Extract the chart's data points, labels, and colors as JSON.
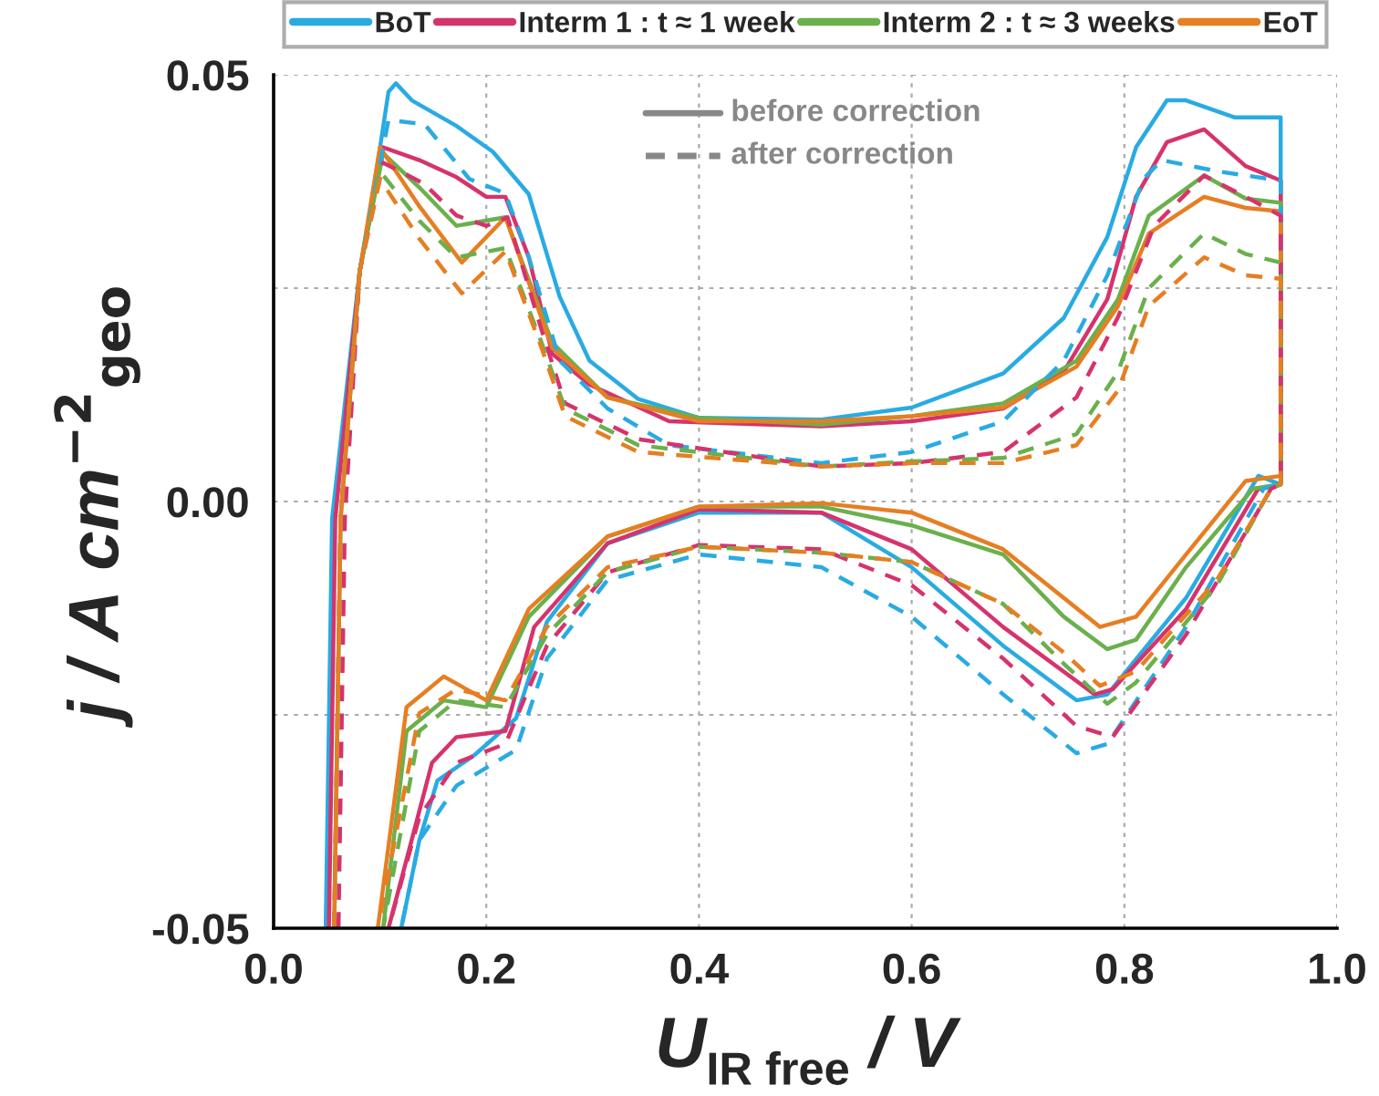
{
  "chart_data": {
    "type": "line",
    "xlabel": "U$_{IR free}$ / V",
    "ylabel": "j / A cm$^{−2}$$_{geo}$",
    "annotations": [
      "before correction",
      "after correction"
    ],
    "xlim": [
      0,
      1
    ],
    "ylim": [
      -0.05,
      0.05
    ],
    "xticks": [
      {
        "value": 0,
        "label": "0.0"
      },
      {
        "value": 0.2,
        "label": "0.2"
      },
      {
        "value": 0.4,
        "label": "0.4"
      },
      {
        "value": 0.6,
        "label": "0.6"
      },
      {
        "value": 0.8,
        "label": "0.8"
      },
      {
        "value": 1,
        "label": "1.0"
      }
    ],
    "yticks": [
      {
        "value": -0.05,
        "label": "-0.05"
      },
      {
        "value": -0.025,
        "label": null
      },
      {
        "value": 0,
        "label": "0.00"
      },
      {
        "value": 0.025,
        "label": null
      },
      {
        "value": 0.05,
        "label": "0.05"
      }
    ],
    "grid": true,
    "legend": "top",
    "series": [
      {
        "name": "BoT",
        "color": "#29abe2",
        "line_style": "solid",
        "x": [
          0.049,
          0.055,
          0.081,
          0.091,
          0.108,
          0.115,
          0.13,
          0.172,
          0.206,
          0.24,
          0.269,
          0.297,
          0.343,
          0.4,
          0.515,
          0.6,
          0.686,
          0.743,
          0.784,
          0.811,
          0.84,
          0.858,
          0.904,
          0.947,
          0.947,
          0.926,
          0.858,
          0.784,
          0.755,
          0.686,
          0.6,
          0.515,
          0.4,
          0.314,
          0.257,
          0.228,
          0.189,
          0.154,
          0.137,
          0.12
        ],
        "values": [
          -0.05,
          -0.002,
          0.027,
          0.034,
          0.048,
          0.049,
          0.047,
          0.044,
          0.041,
          0.036,
          0.024,
          0.0165,
          0.012,
          0.0098,
          0.0096,
          0.011,
          0.015,
          0.0215,
          0.031,
          0.0415,
          0.047,
          0.047,
          0.045,
          0.045,
          0.002,
          0.003,
          -0.0113,
          -0.0226,
          -0.0233,
          -0.0169,
          -0.0077,
          -0.0013,
          -0.0013,
          -0.0049,
          -0.0141,
          -0.0254,
          -0.0297,
          -0.0327,
          -0.0397,
          -0.05
        ]
      },
      {
        "name": "Interm 1 : t ≈ 1 week",
        "color": "#d6336c",
        "line_style": "solid",
        "x": [
          0.052,
          0.058,
          0.081,
          0.103,
          0.137,
          0.172,
          0.2,
          0.218,
          0.24,
          0.262,
          0.297,
          0.372,
          0.515,
          0.6,
          0.686,
          0.743,
          0.784,
          0.811,
          0.84,
          0.875,
          0.914,
          0.947,
          0.947,
          0.926,
          0.858,
          0.789,
          0.772,
          0.686,
          0.6,
          0.515,
          0.4,
          0.314,
          0.245,
          0.218,
          0.172,
          0.149,
          0.108
        ],
        "values": [
          -0.05,
          -0.002,
          0.027,
          0.0415,
          0.04,
          0.038,
          0.0357,
          0.0357,
          0.0286,
          0.0173,
          0.0137,
          0.0094,
          0.0088,
          0.0094,
          0.0109,
          0.0152,
          0.0237,
          0.0357,
          0.0421,
          0.0436,
          0.0393,
          0.0376,
          0.002,
          0.0015,
          -0.0126,
          -0.022,
          -0.0226,
          -0.0147,
          -0.0056,
          -0.0013,
          -0.0009,
          -0.0049,
          -0.0147,
          -0.0269,
          -0.0276,
          -0.0306,
          -0.05
        ]
      },
      {
        "name": "Interm 2 : t ≈ 3 weeks",
        "color": "#6ab04c",
        "line_style": "solid",
        "x": [
          0.057,
          0.063,
          0.081,
          0.103,
          0.137,
          0.172,
          0.218,
          0.262,
          0.314,
          0.4,
          0.515,
          0.6,
          0.686,
          0.755,
          0.794,
          0.823,
          0.875,
          0.914,
          0.947,
          0.947,
          0.921,
          0.858,
          0.811,
          0.784,
          0.743,
          0.686,
          0.6,
          0.515,
          0.4,
          0.314,
          0.24,
          0.2,
          0.16,
          0.125,
          0.103
        ],
        "values": [
          -0.05,
          -0.002,
          0.027,
          0.0408,
          0.0368,
          0.0323,
          0.0333,
          0.0186,
          0.0122,
          0.0098,
          0.009,
          0.01,
          0.0115,
          0.0165,
          0.0237,
          0.0335,
          0.0382,
          0.0355,
          0.035,
          0.002,
          0.0015,
          -0.0077,
          -0.0162,
          -0.0173,
          -0.0135,
          -0.0062,
          -0.0028,
          -0.0006,
          -0.0006,
          -0.0041,
          -0.0135,
          -0.0241,
          -0.0233,
          -0.0269,
          -0.05
        ]
      },
      {
        "name": "EoT",
        "color": "#e67e22",
        "line_style": "solid",
        "x": [
          0.057,
          0.063,
          0.081,
          0.1,
          0.137,
          0.177,
          0.218,
          0.262,
          0.314,
          0.4,
          0.515,
          0.6,
          0.686,
          0.755,
          0.794,
          0.823,
          0.875,
          0.914,
          0.947,
          0.947,
          0.914,
          0.858,
          0.811,
          0.777,
          0.743,
          0.686,
          0.6,
          0.515,
          0.4,
          0.314,
          0.24,
          0.2,
          0.16,
          0.125,
          0.098
        ],
        "values": [
          -0.05,
          -0.002,
          0.027,
          0.0415,
          0.0346,
          0.028,
          0.0333,
          0.018,
          0.0122,
          0.0094,
          0.0094,
          0.01,
          0.011,
          0.0158,
          0.0229,
          0.0314,
          0.0357,
          0.0344,
          0.034,
          0.003,
          0.0024,
          -0.0062,
          -0.0135,
          -0.0147,
          -0.0113,
          -0.0056,
          -0.0013,
          -0.0002,
          -0.0006,
          -0.0041,
          -0.0126,
          -0.0233,
          -0.0205,
          -0.0241,
          -0.05
        ]
      },
      {
        "color": "#29abe2",
        "line_style": "dashed",
        "x": [
          0.057,
          0.063,
          0.081,
          0.108,
          0.142,
          0.184,
          0.218,
          0.24,
          0.269,
          0.314,
          0.372,
          0.515,
          0.6,
          0.686,
          0.743,
          0.784,
          0.818,
          0.835,
          0.887,
          0.947,
          0.947,
          0.931,
          0.858,
          0.784,
          0.755,
          0.686,
          0.6,
          0.515,
          0.4,
          0.314,
          0.257,
          0.228,
          0.172,
          0.137,
          0.12
        ],
        "values": [
          -0.05,
          -0.002,
          0.027,
          0.0447,
          0.0442,
          0.0378,
          0.0361,
          0.0286,
          0.0165,
          0.0109,
          0.0066,
          0.0045,
          0.0058,
          0.0094,
          0.0165,
          0.0265,
          0.0378,
          0.04,
          0.0387,
          0.0376,
          0.002,
          0.0015,
          -0.0147,
          -0.0284,
          -0.0295,
          -0.0226,
          -0.0135,
          -0.0077,
          -0.0062,
          -0.0092,
          -0.0184,
          -0.0291,
          -0.0333,
          -0.0397,
          -0.05
        ]
      },
      {
        "color": "#d6336c",
        "line_style": "dashed",
        "x": [
          0.061,
          0.067,
          0.081,
          0.103,
          0.142,
          0.172,
          0.2,
          0.22,
          0.252,
          0.274,
          0.343,
          0.515,
          0.6,
          0.686,
          0.755,
          0.794,
          0.828,
          0.875,
          0.914,
          0.947,
          0.947,
          0.938,
          0.858,
          0.789,
          0.755,
          0.686,
          0.6,
          0.515,
          0.4,
          0.314,
          0.257,
          0.218,
          0.172,
          0.137,
          0.108
        ],
        "values": [
          -0.05,
          -0.002,
          0.027,
          0.0397,
          0.0372,
          0.0335,
          0.0323,
          0.0333,
          0.0201,
          0.0115,
          0.0073,
          0.0041,
          0.0045,
          0.0058,
          0.0122,
          0.0216,
          0.0323,
          0.0382,
          0.0357,
          0.0335,
          0.002,
          0.0015,
          -0.0156,
          -0.0276,
          -0.0263,
          -0.0184,
          -0.0098,
          -0.0056,
          -0.0051,
          -0.0083,
          -0.0169,
          -0.0284,
          -0.0306,
          -0.037,
          -0.05
        ]
      },
      {
        "color": "#6ab04c",
        "line_style": "dashed",
        "x": [
          0.057,
          0.063,
          0.081,
          0.1,
          0.137,
          0.172,
          0.218,
          0.252,
          0.274,
          0.343,
          0.515,
          0.6,
          0.686,
          0.755,
          0.794,
          0.823,
          0.875,
          0.914,
          0.947,
          0.947,
          0.938,
          0.887,
          0.811,
          0.784,
          0.743,
          0.686,
          0.6,
          0.515,
          0.4,
          0.314,
          0.257,
          0.218,
          0.172,
          0.137,
          0.103
        ],
        "values": [
          -0.05,
          -0.002,
          0.027,
          0.0387,
          0.0329,
          0.0286,
          0.0297,
          0.0186,
          0.0109,
          0.0066,
          0.0041,
          0.0047,
          0.0051,
          0.0079,
          0.0152,
          0.025,
          0.0314,
          0.029,
          0.028,
          0.002,
          0.0015,
          -0.0098,
          -0.0212,
          -0.0237,
          -0.019,
          -0.012,
          -0.0071,
          -0.006,
          -0.0053,
          -0.0083,
          -0.0156,
          -0.0241,
          -0.0233,
          -0.0269,
          -0.05
        ]
      },
      {
        "color": "#e67e22",
        "line_style": "dashed",
        "x": [
          0.057,
          0.063,
          0.081,
          0.1,
          0.137,
          0.177,
          0.218,
          0.252,
          0.274,
          0.343,
          0.515,
          0.6,
          0.686,
          0.755,
          0.794,
          0.823,
          0.875,
          0.914,
          0.947,
          0.947,
          0.938,
          0.887,
          0.811,
          0.777,
          0.743,
          0.686,
          0.6,
          0.515,
          0.4,
          0.314,
          0.257,
          0.218,
          0.172,
          0.137,
          0.098
        ],
        "values": [
          -0.05,
          -0.002,
          0.027,
          0.0378,
          0.0308,
          0.0244,
          0.0293,
          0.018,
          0.01,
          0.0058,
          0.0041,
          0.0045,
          0.0045,
          0.0066,
          0.013,
          0.0229,
          0.0286,
          0.0265,
          0.0261,
          0.002,
          0.0015,
          -0.0092,
          -0.0199,
          -0.0216,
          -0.0177,
          -0.012,
          -0.0071,
          -0.006,
          -0.0053,
          -0.0077,
          -0.0147,
          -0.0233,
          -0.022,
          -0.0248,
          -0.05
        ]
      }
    ]
  }
}
